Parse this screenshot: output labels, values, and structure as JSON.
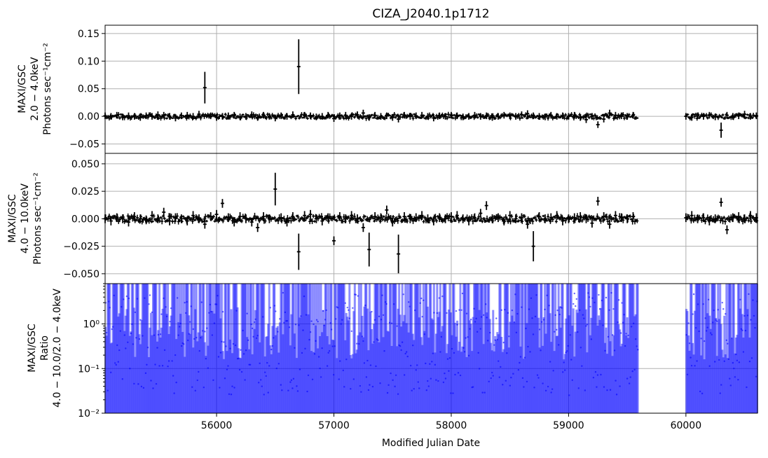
{
  "title": "CIZA_J2040.1p1712",
  "xlabel": "Modified Julian Date",
  "xticks": [
    56000,
    57000,
    58000,
    59000,
    60000
  ],
  "xlim": [
    55050,
    60610
  ],
  "gap": [
    59590,
    60000
  ],
  "panels": [
    {
      "ylabel_lines": [
        "MAXI/GSC",
        "2.0 − 4.0keV",
        "Photons sec⁻¹cm⁻²"
      ],
      "ytick_labels": [
        "0.15",
        "0.10",
        "0.05",
        "0.00",
        "−0.05"
      ]
    },
    {
      "ylabel_lines": [
        "MAXI/GSC",
        "4.0 − 10.0keV",
        "Photons sec⁻¹cm⁻²"
      ],
      "ytick_labels": [
        "0.050",
        "0.025",
        "0.000",
        "−0.025",
        "−0.050"
      ]
    },
    {
      "ylabel_lines": [
        "MAXI/GSC",
        "Ratio",
        "4.0 − 10.0/2.0 − 4.0keV"
      ],
      "ytick_labels": [
        "10⁰",
        "10⁻¹",
        "10⁻²"
      ]
    }
  ],
  "chart_data": [
    {
      "type": "scatter",
      "name": "2.0-4.0keV light curve",
      "ylim": [
        -0.067,
        0.165
      ],
      "yticks": [
        0.15,
        0.1,
        0.05,
        0.0,
        -0.05
      ],
      "grid": true,
      "typical_error": 0.006,
      "x": [
        55050,
        55100,
        55150,
        55200,
        55250,
        55300,
        55350,
        55400,
        55450,
        55500,
        55550,
        55600,
        55650,
        55700,
        55750,
        55800,
        55850,
        55900,
        55950,
        56000,
        56050,
        56100,
        56150,
        56200,
        56250,
        56300,
        56350,
        56400,
        56450,
        56500,
        56550,
        56600,
        56650,
        56700,
        56750,
        56800,
        56850,
        56900,
        56950,
        57000,
        57050,
        57100,
        57150,
        57200,
        57250,
        57300,
        57350,
        57400,
        57450,
        57500,
        57550,
        57600,
        57650,
        57700,
        57750,
        57800,
        57850,
        57900,
        57950,
        58000,
        58050,
        58100,
        58150,
        58200,
        58250,
        58300,
        58350,
        58400,
        58450,
        58500,
        58550,
        58600,
        58650,
        58700,
        58750,
        58800,
        58850,
        58900,
        58950,
        59000,
        59050,
        59100,
        59150,
        59200,
        59250,
        59300,
        59350,
        59400,
        59450,
        59500,
        59550,
        60000,
        60050,
        60100,
        60150,
        60200,
        60250,
        60300,
        60350,
        60400,
        60450,
        60500,
        60550,
        60600
      ],
      "y": [
        0.001,
        0.0,
        0.002,
        -0.001,
        0.001,
        0.0,
        -0.002,
        0.001,
        0.0,
        0.003,
        0.002,
        0.0,
        -0.003,
        0.001,
        0.002,
        0.0,
        0.004,
        0.052,
        0.001,
        -0.002,
        0.0,
        0.001,
        0.002,
        -0.001,
        0.0,
        0.003,
        -0.002,
        0.002,
        0.0,
        -0.003,
        0.001,
        0.0,
        0.003,
        0.09,
        0.002,
        0.001,
        -0.001,
        0.0,
        0.002,
        -0.004,
        0.001,
        0.002,
        0.0,
        0.003,
        0.006,
        -0.002,
        0.002,
        0.0,
        0.001,
        -0.002,
        -0.005,
        0.002,
        0.0,
        0.001,
        0.002,
        0.0,
        -0.003,
        0.001,
        0.0,
        0.002,
        0.001,
        -0.001,
        0.0,
        0.002,
        0.0,
        0.001,
        -0.002,
        0.0,
        0.002,
        0.001,
        0.0,
        0.003,
        0.005,
        0.001,
        0.0,
        -0.001,
        0.002,
        0.0,
        0.001,
        0.0,
        0.002,
        -0.002,
        -0.006,
        0.0,
        -0.015,
        -0.005,
        0.006,
        0.002,
        0.001,
        0.0,
        0.002,
        0.0,
        -0.002,
        0.001,
        0.0,
        0.002,
        -0.001,
        -0.025,
        0.002,
        0.0,
        0.001,
        0.004,
        0.0,
        0.001
      ]
    },
    {
      "type": "scatter",
      "name": "4.0-10.0keV light curve",
      "ylim": [
        -0.059,
        0.0595
      ],
      "yticks": [
        0.05,
        0.025,
        0.0,
        -0.025,
        -0.05
      ],
      "grid": true,
      "typical_error": 0.004,
      "x": [
        55050,
        55100,
        55150,
        55200,
        55250,
        55300,
        55350,
        55400,
        55450,
        55500,
        55550,
        55600,
        55650,
        55700,
        55750,
        55800,
        55850,
        55900,
        55950,
        56000,
        56050,
        56100,
        56150,
        56200,
        56250,
        56300,
        56350,
        56400,
        56450,
        56500,
        56550,
        56600,
        56650,
        56700,
        56750,
        56800,
        56850,
        56900,
        56950,
        57000,
        57050,
        57100,
        57150,
        57200,
        57250,
        57300,
        57350,
        57400,
        57450,
        57500,
        57550,
        57600,
        57650,
        57700,
        57750,
        57800,
        57850,
        57900,
        57950,
        58000,
        58050,
        58100,
        58150,
        58200,
        58250,
        58300,
        58350,
        58400,
        58450,
        58500,
        58550,
        58600,
        58650,
        58700,
        58750,
        58800,
        58850,
        58900,
        58950,
        59000,
        59050,
        59100,
        59150,
        59200,
        59250,
        59300,
        59350,
        59400,
        59450,
        59500,
        59550,
        60000,
        60050,
        60100,
        60150,
        60200,
        60250,
        60300,
        60350,
        60400,
        60450,
        60500,
        60550,
        60600
      ],
      "y": [
        0.0,
        -0.002,
        0.001,
        0.0,
        -0.003,
        0.002,
        0.0,
        -0.001,
        0.003,
        0.0,
        0.006,
        -0.002,
        0.001,
        0.0,
        -0.002,
        0.003,
        0.0,
        -0.005,
        0.002,
        0.004,
        0.014,
        0.001,
        -0.003,
        0.002,
        0.0,
        -0.003,
        -0.008,
        0.002,
        0.0,
        0.027,
        0.001,
        -0.003,
        0.002,
        -0.03,
        0.003,
        0.004,
        0.0,
        -0.002,
        0.001,
        -0.02,
        0.002,
        0.0,
        0.003,
        0.0,
        -0.008,
        -0.028,
        0.002,
        0.001,
        0.008,
        -0.003,
        -0.032,
        0.002,
        0.0,
        0.001,
        0.003,
        0.0,
        -0.002,
        0.001,
        0.0,
        0.002,
        0.003,
        0.0,
        -0.002,
        0.001,
        0.005,
        0.012,
        0.0,
        0.001,
        -0.002,
        0.003,
        0.0,
        0.001,
        -0.005,
        -0.025,
        0.002,
        0.0,
        0.001,
        0.003,
        -0.002,
        0.0,
        0.001,
        0.002,
        0.0,
        -0.004,
        0.016,
        0.002,
        -0.005,
        0.003,
        0.001,
        0.0,
        0.002,
        0.001,
        0.003,
        0.0,
        0.001,
        -0.002,
        0.0,
        0.015,
        -0.01,
        0.001,
        0.002,
        0.0,
        0.003,
        0.001
      ]
    },
    {
      "type": "scatter",
      "name": "hardness ratio",
      "yscale": "log",
      "ylim": [
        0.01,
        8
      ],
      "yticks": [
        1,
        0.1,
        0.01
      ],
      "grid": true,
      "color": "#0000ff"
    }
  ]
}
